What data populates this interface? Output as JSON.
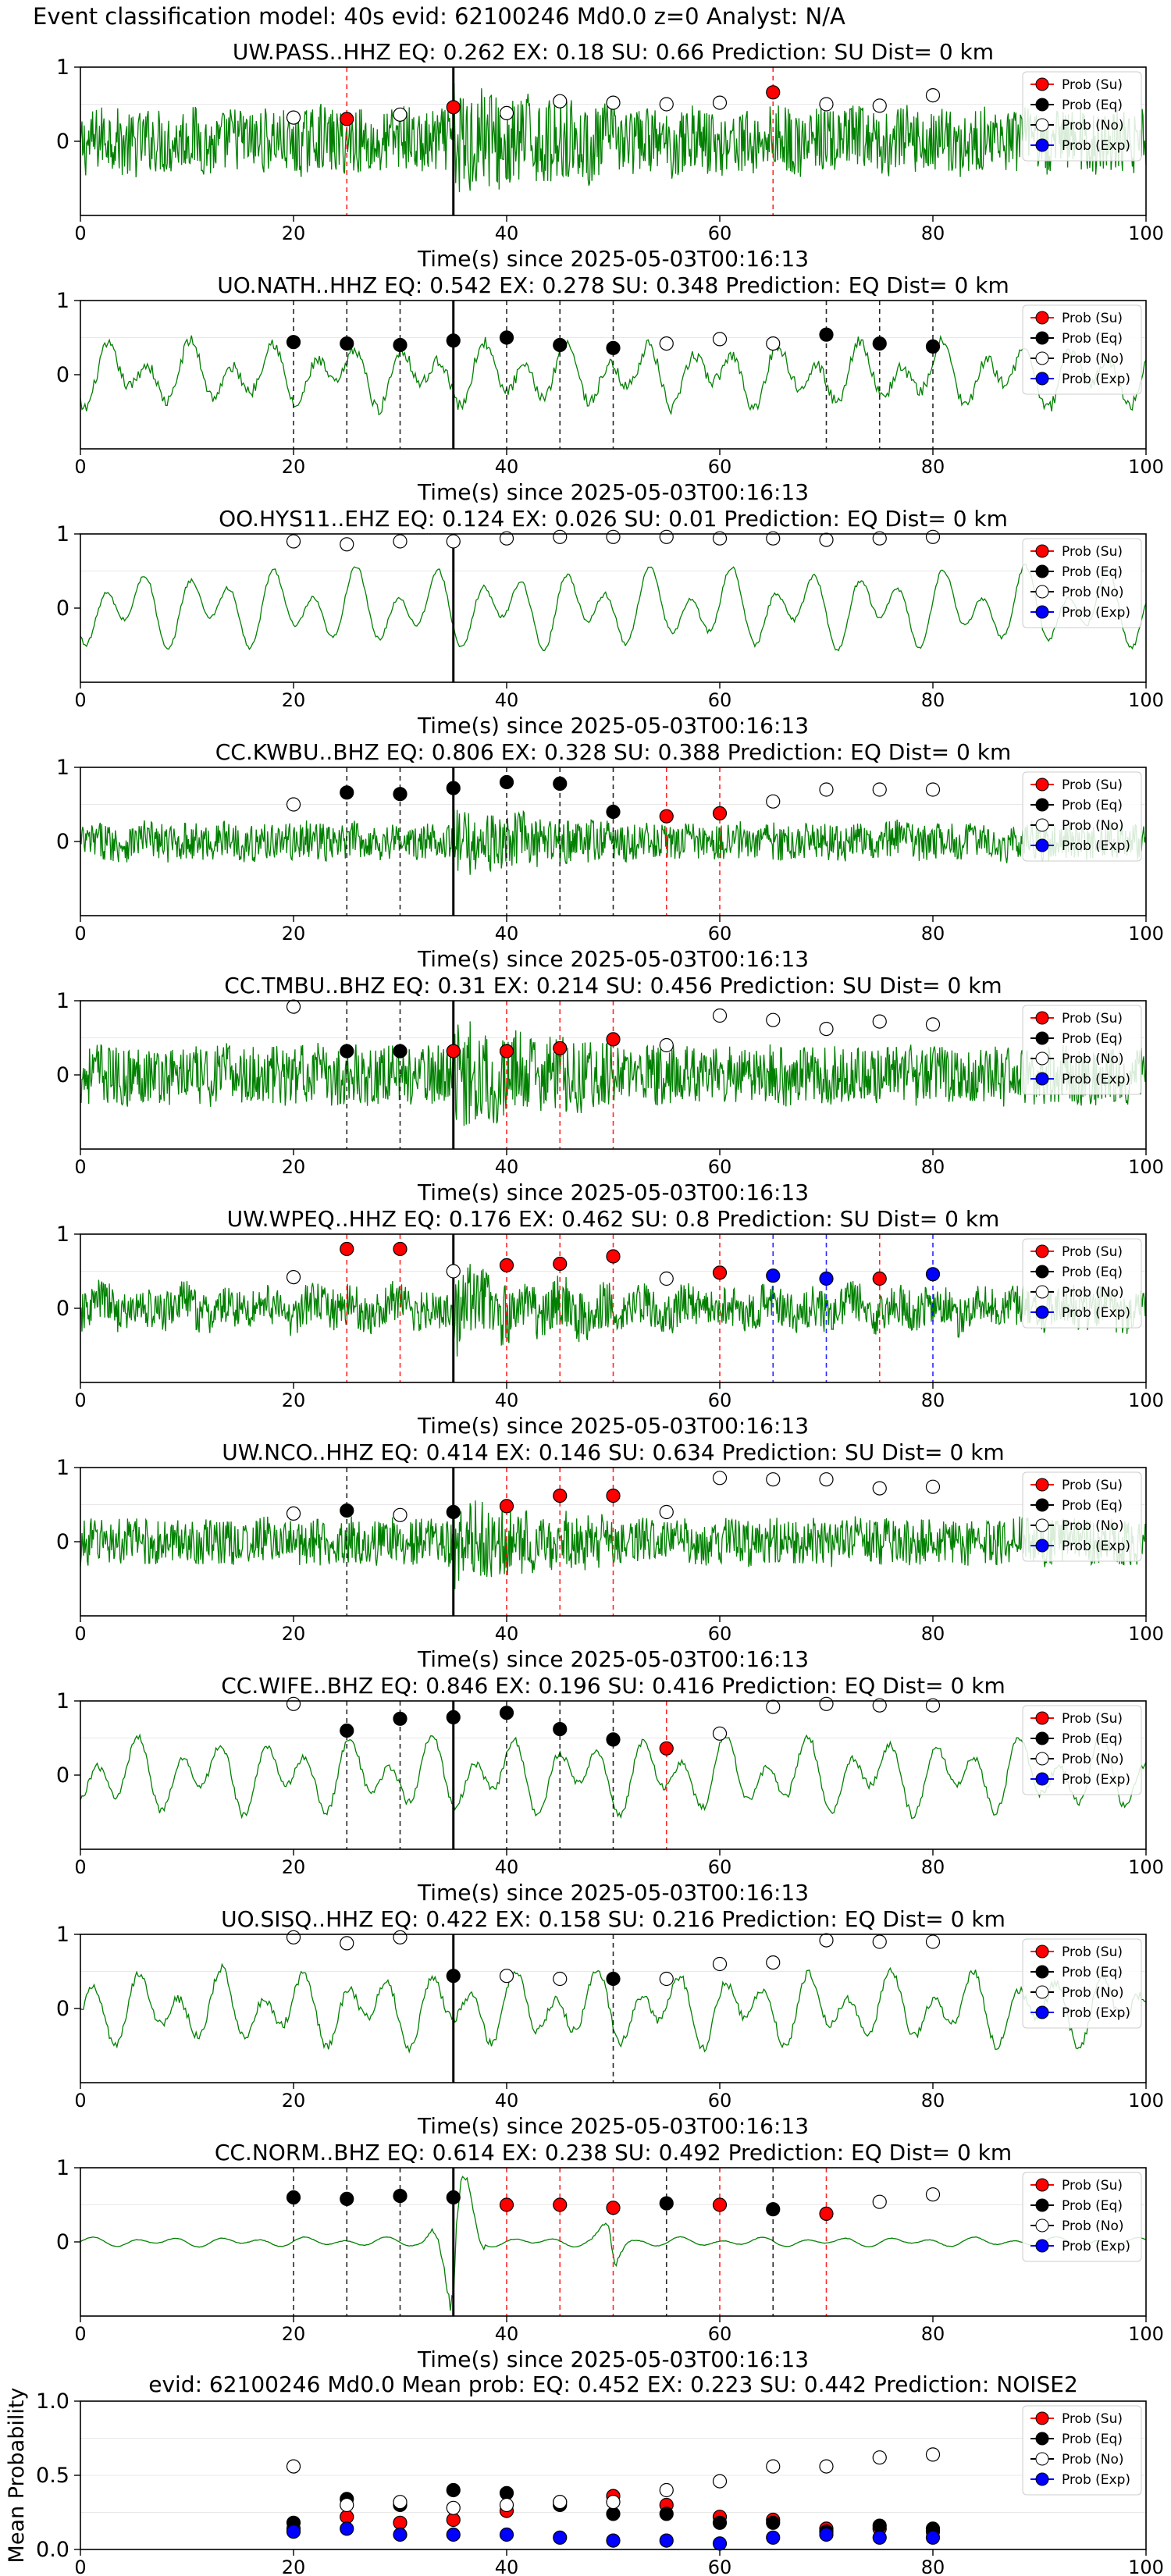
{
  "figure_title": "Event classification model: 40s evid: 62100246 Md0.0 z=0 Analyst: N/A",
  "legend_labels": [
    "Prob (Su)",
    "Prob (Eq)",
    "Prob (No)",
    "Prob (Exp)"
  ],
  "colors": {
    "trace": "#008000",
    "su": "#ff0000",
    "eq": "#000000",
    "no": "#ffffff",
    "exp": "#0000ff",
    "line_su": "#ff0000",
    "line_eq": "#000000",
    "line_exp": "#0000ff",
    "origin_line": "#000000"
  },
  "chart_data": [
    {
      "type": "line",
      "title": "UW.PASS..HHZ   EQ: 0.262  EX: 0.18  SU: 0.66   Prediction: SU    Dist= 0 km",
      "xlabel": "Time(s) since 2025-05-03T00:16:13",
      "ylabel": "",
      "xlim": [
        0,
        100
      ],
      "ylim": [
        -1,
        1
      ],
      "xticks": [
        0,
        20,
        40,
        60,
        80,
        100
      ],
      "yticks": [
        1,
        0
      ],
      "origin_time": 35,
      "amplitude": 0.52,
      "noise_frac": 0.85,
      "prob_times": [
        20,
        25,
        30,
        35,
        40,
        45,
        50,
        55,
        60,
        65,
        70,
        75,
        80
      ],
      "prob_classes": [
        "no",
        "su",
        "no",
        "su",
        "no",
        "no",
        "no",
        "no",
        "no",
        "su",
        "no",
        "no",
        "no"
      ],
      "prob_values": [
        0.32,
        0.3,
        0.36,
        0.46,
        0.38,
        0.54,
        0.52,
        0.5,
        0.52,
        0.66,
        0.5,
        0.48,
        0.62
      ]
    },
    {
      "type": "line",
      "title": "UO.NATH..HHZ   EQ: 0.542  EX: 0.278  SU: 0.348   Prediction: EQ    Dist= 0 km",
      "xlabel": "Time(s) since 2025-05-03T00:16:13",
      "ylabel": "",
      "xlim": [
        0,
        100
      ],
      "ylim": [
        -1,
        1
      ],
      "xticks": [
        0,
        20,
        40,
        60,
        80,
        100
      ],
      "yticks": [
        1,
        0
      ],
      "origin_time": 35,
      "amplitude": 0.55,
      "noise_frac": 0.15,
      "prob_times": [
        20,
        25,
        30,
        35,
        40,
        45,
        50,
        55,
        60,
        65,
        70,
        75,
        80
      ],
      "prob_classes": [
        "eq",
        "eq",
        "eq",
        "eq",
        "eq",
        "eq",
        "eq",
        "no",
        "no",
        "no",
        "eq",
        "eq",
        "eq"
      ],
      "prob_values": [
        0.44,
        0.42,
        0.4,
        0.46,
        0.5,
        0.4,
        0.36,
        0.42,
        0.48,
        0.42,
        0.54,
        0.42,
        0.38
      ]
    },
    {
      "type": "line",
      "title": "OO.HYS11..EHZ   EQ: 0.124  EX: 0.026  SU: 0.01   Prediction: EQ    Dist= 0 km",
      "xlabel": "Time(s) since 2025-05-03T00:16:13",
      "ylabel": "",
      "xlim": [
        0,
        100
      ],
      "ylim": [
        -1,
        1
      ],
      "xticks": [
        0,
        20,
        40,
        60,
        80,
        100
      ],
      "yticks": [
        1,
        0
      ],
      "origin_time": 35,
      "amplitude": 0.6,
      "noise_frac": 0.05,
      "prob_times": [
        20,
        25,
        30,
        35,
        40,
        45,
        50,
        55,
        60,
        65,
        70,
        75,
        80
      ],
      "prob_classes": [
        "no",
        "no",
        "no",
        "no",
        "no",
        "no",
        "no",
        "no",
        "no",
        "no",
        "no",
        "no",
        "no"
      ],
      "prob_values": [
        0.9,
        0.86,
        0.9,
        0.9,
        0.94,
        0.96,
        0.96,
        0.96,
        0.94,
        0.94,
        0.92,
        0.94,
        0.96
      ]
    },
    {
      "type": "line",
      "title": "CC.KWBU..BHZ   EQ: 0.806  EX: 0.328  SU: 0.388   Prediction: EQ    Dist= 0 km",
      "xlabel": "Time(s) since 2025-05-03T00:16:13",
      "ylabel": "",
      "xlim": [
        0,
        100
      ],
      "ylim": [
        -1,
        1
      ],
      "xticks": [
        0,
        20,
        40,
        60,
        80,
        100
      ],
      "yticks": [
        1,
        0
      ],
      "origin_time": 35,
      "amplitude": 0.3,
      "noise_frac": 0.85,
      "prob_times": [
        20,
        25,
        30,
        35,
        40,
        45,
        50,
        55,
        60,
        65,
        70,
        75,
        80
      ],
      "prob_classes": [
        "no",
        "eq",
        "eq",
        "eq",
        "eq",
        "eq",
        "eq",
        "su",
        "su",
        "no",
        "no",
        "no",
        "no"
      ],
      "prob_values": [
        0.5,
        0.66,
        0.64,
        0.72,
        0.8,
        0.78,
        0.4,
        0.34,
        0.38,
        0.54,
        0.7,
        0.7,
        0.7
      ]
    },
    {
      "type": "line",
      "title": "CC.TMBU..BHZ   EQ: 0.31  EX: 0.214  SU: 0.456   Prediction: SU    Dist= 0 km",
      "xlabel": "Time(s) since 2025-05-03T00:16:13",
      "ylabel": "",
      "xlim": [
        0,
        100
      ],
      "ylim": [
        -1,
        1
      ],
      "xticks": [
        0,
        20,
        40,
        60,
        80,
        100
      ],
      "yticks": [
        1,
        0
      ],
      "origin_time": 35,
      "amplitude": 0.45,
      "noise_frac": 0.9,
      "prob_times": [
        20,
        25,
        30,
        35,
        40,
        45,
        50,
        55,
        60,
        65,
        70,
        75,
        80
      ],
      "prob_classes": [
        "no",
        "eq",
        "eq",
        "su",
        "su",
        "su",
        "su",
        "no",
        "no",
        "no",
        "no",
        "no",
        "no"
      ],
      "prob_values": [
        0.92,
        0.32,
        0.32,
        0.32,
        0.32,
        0.36,
        0.48,
        0.4,
        0.8,
        0.74,
        0.62,
        0.72,
        0.68
      ]
    },
    {
      "type": "line",
      "title": "UW.WPEQ..HHZ   EQ: 0.176  EX: 0.462  SU: 0.8   Prediction: SU    Dist= 0 km",
      "xlabel": "Time(s) since 2025-05-03T00:16:13",
      "ylabel": "",
      "xlim": [
        0,
        100
      ],
      "ylim": [
        -1,
        1
      ],
      "xticks": [
        0,
        20,
        40,
        60,
        80,
        100
      ],
      "yticks": [
        1,
        0
      ],
      "origin_time": 35,
      "amplitude": 0.4,
      "noise_frac": 0.7,
      "prob_times": [
        20,
        25,
        30,
        35,
        40,
        45,
        50,
        55,
        60,
        65,
        70,
        75,
        80
      ],
      "prob_classes": [
        "no",
        "su",
        "su",
        "no",
        "su",
        "su",
        "su",
        "no",
        "su",
        "exp",
        "exp",
        "su",
        "exp"
      ],
      "prob_values": [
        0.42,
        0.8,
        0.8,
        0.5,
        0.58,
        0.6,
        0.7,
        0.4,
        0.48,
        0.44,
        0.4,
        0.4,
        0.46
      ]
    },
    {
      "type": "line",
      "title": "UW.NCO..HHZ   EQ: 0.414  EX: 0.146  SU: 0.634   Prediction: SU    Dist= 0 km",
      "xlabel": "Time(s) since 2025-05-03T00:16:13",
      "ylabel": "",
      "xlim": [
        0,
        100
      ],
      "ylim": [
        -1,
        1
      ],
      "xticks": [
        0,
        20,
        40,
        60,
        80,
        100
      ],
      "yticks": [
        1,
        0
      ],
      "origin_time": 35,
      "amplitude": 0.35,
      "noise_frac": 0.9,
      "prob_times": [
        20,
        25,
        30,
        35,
        40,
        45,
        50,
        55,
        60,
        65,
        70,
        75,
        80
      ],
      "prob_classes": [
        "no",
        "eq",
        "no",
        "eq",
        "su",
        "su",
        "su",
        "no",
        "no",
        "no",
        "no",
        "no",
        "no"
      ],
      "prob_values": [
        0.38,
        0.42,
        0.36,
        0.4,
        0.48,
        0.62,
        0.62,
        0.4,
        0.86,
        0.84,
        0.84,
        0.72,
        0.74
      ]
    },
    {
      "type": "line",
      "title": "CC.WIFE..BHZ   EQ: 0.846  EX: 0.196  SU: 0.416   Prediction: EQ    Dist= 0 km",
      "xlabel": "Time(s) since 2025-05-03T00:16:13",
      "ylabel": "",
      "xlim": [
        0,
        100
      ],
      "ylim": [
        -1,
        1
      ],
      "xticks": [
        0,
        20,
        40,
        60,
        80,
        100
      ],
      "yticks": [
        1,
        0
      ],
      "origin_time": 35,
      "amplitude": 0.6,
      "noise_frac": 0.08,
      "prob_times": [
        20,
        25,
        30,
        35,
        40,
        45,
        50,
        55,
        60,
        65,
        70,
        75,
        80
      ],
      "prob_classes": [
        "no",
        "eq",
        "eq",
        "eq",
        "eq",
        "eq",
        "eq",
        "su",
        "no",
        "no",
        "no",
        "no",
        "no"
      ],
      "prob_values": [
        0.96,
        0.6,
        0.76,
        0.78,
        0.84,
        0.62,
        0.48,
        0.36,
        0.56,
        0.92,
        0.96,
        0.94,
        0.94
      ]
    },
    {
      "type": "line",
      "title": "UO.SISQ..HHZ   EQ: 0.422  EX: 0.158  SU: 0.216   Prediction: EQ    Dist= 0 km",
      "xlabel": "Time(s) since 2025-05-03T00:16:13",
      "ylabel": "",
      "xlim": [
        0,
        100
      ],
      "ylim": [
        -1,
        1
      ],
      "xticks": [
        0,
        20,
        40,
        60,
        80,
        100
      ],
      "yticks": [
        1,
        0
      ],
      "origin_time": 35,
      "amplitude": 0.6,
      "noise_frac": 0.1,
      "prob_times": [
        20,
        25,
        30,
        35,
        40,
        45,
        50,
        55,
        60,
        65,
        70,
        75,
        80
      ],
      "prob_classes": [
        "no",
        "no",
        "no",
        "eq",
        "no",
        "no",
        "eq",
        "no",
        "no",
        "no",
        "no",
        "no",
        "no"
      ],
      "prob_values": [
        0.96,
        0.88,
        0.96,
        0.44,
        0.44,
        0.4,
        0.4,
        0.4,
        0.6,
        0.62,
        0.92,
        0.9,
        0.9
      ]
    },
    {
      "type": "line",
      "title": "CC.NORM..BHZ   EQ: 0.614  EX: 0.238  SU: 0.492   Prediction: EQ    Dist= 0 km",
      "xlabel": "Time(s) since 2025-05-03T00:16:13",
      "ylabel": "",
      "xlim": [
        0,
        100
      ],
      "ylim": [
        -1,
        1
      ],
      "xticks": [
        0,
        20,
        40,
        60,
        80,
        100
      ],
      "yticks": [
        1,
        0
      ],
      "origin_time": 35,
      "amplitude": 0.6,
      "noise_frac": 0.05,
      "burst": true,
      "prob_times": [
        20,
        25,
        30,
        35,
        40,
        45,
        50,
        55,
        60,
        65,
        70,
        75,
        80
      ],
      "prob_classes": [
        "eq",
        "eq",
        "eq",
        "eq",
        "su",
        "su",
        "su",
        "eq",
        "su",
        "eq",
        "su",
        "no",
        "no"
      ],
      "prob_values": [
        0.6,
        0.58,
        0.62,
        0.6,
        0.5,
        0.5,
        0.46,
        0.52,
        0.5,
        0.44,
        0.38,
        0.54,
        0.64
      ]
    },
    {
      "type": "scatter",
      "title": "evid: 62100246  Md0.0   Mean prob:   EQ: 0.452  EX: 0.223  SU: 0.442   Prediction: NOISE2",
      "xlabel": "",
      "ylabel": "Mean Probability",
      "xlim": [
        0,
        100
      ],
      "ylim": [
        0,
        1
      ],
      "xticks": [
        0,
        20,
        40,
        60,
        80,
        100
      ],
      "yticks": [
        0.0,
        0.5,
        1.0
      ],
      "x": [
        20,
        25,
        30,
        35,
        40,
        45,
        50,
        55,
        60,
        65,
        70,
        75,
        80
      ],
      "series": [
        {
          "name": "Prob (Su)",
          "class": "su",
          "values": [
            0.14,
            0.22,
            0.18,
            0.2,
            0.26,
            0.32,
            0.36,
            0.3,
            0.22,
            0.2,
            0.14,
            0.14,
            0.12
          ]
        },
        {
          "name": "Prob (Eq)",
          "class": "eq",
          "values": [
            0.18,
            0.34,
            0.3,
            0.4,
            0.38,
            0.3,
            0.24,
            0.24,
            0.18,
            0.18,
            0.12,
            0.16,
            0.14
          ]
        },
        {
          "name": "Prob (No)",
          "class": "no",
          "values": [
            0.56,
            0.3,
            0.32,
            0.28,
            0.3,
            0.32,
            0.32,
            0.4,
            0.46,
            0.56,
            0.56,
            0.62,
            0.64
          ]
        },
        {
          "name": "Prob (Exp)",
          "class": "exp",
          "values": [
            0.12,
            0.14,
            0.1,
            0.1,
            0.1,
            0.08,
            0.06,
            0.06,
            0.04,
            0.08,
            0.1,
            0.08,
            0.08
          ]
        }
      ]
    }
  ]
}
